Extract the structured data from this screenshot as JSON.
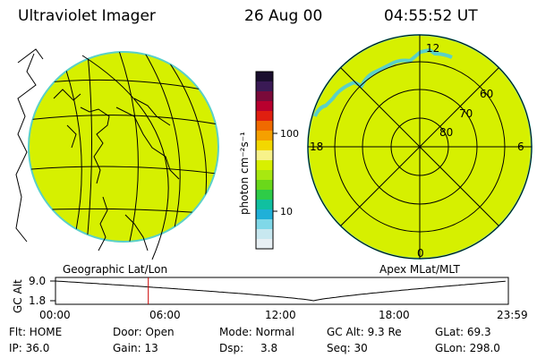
{
  "header": {
    "instrument": "Ultraviolet Imager",
    "date": "26 Aug 00",
    "time": "04:55:52 UT"
  },
  "left_panel": {
    "label": "Geographic Lat/Lon"
  },
  "right_panel": {
    "label": "Apex MLat/MLT",
    "mlt_labels": [
      "12",
      "18",
      "6",
      "0"
    ],
    "mlat_labels": [
      "60",
      "70",
      "80"
    ]
  },
  "colorbar": {
    "unit_label": "photon cm⁻²s⁻¹",
    "tick_labels": [
      "100",
      "10"
    ],
    "colors": [
      "#1a0e2e",
      "#3a1a55",
      "#7a0a3a",
      "#b8002e",
      "#e01f10",
      "#f06a00",
      "#f5a000",
      "#f2d800",
      "#f7f28a",
      "#d8f000",
      "#a8e810",
      "#6ad81a",
      "#2ecc48",
      "#10c0a0",
      "#20b0d8",
      "#80d8e8",
      "#c8e8f0",
      "#e8f0f4"
    ]
  },
  "timeline": {
    "axis_label": "GC Alt",
    "y_top": "9.0",
    "y_bottom": "1.8",
    "x_ticks": [
      "00:00",
      "06:00",
      "12:00",
      "18:00",
      "23:59"
    ],
    "marker_time": "04:55",
    "curve_color": "#000000",
    "marker_color": "#cc0000"
  },
  "status": {
    "row1": {
      "flt": "Flt: HOME",
      "door": "Door: Open",
      "mode": "Mode: Normal",
      "gcalt": "GC Alt: 9.3 Re",
      "glat": "GLat: 69.3"
    },
    "row2": {
      "ip": "IP: 36.0",
      "gain": "Gain: 13",
      "dsp_label": "Dsp:",
      "dsp_value": "3.8",
      "seq": "Seq: 30",
      "glon": "GLon: 298.0"
    }
  },
  "image_colors": {
    "disc_fill": "#d6f000",
    "disc_edge": "#5ad0c8"
  }
}
